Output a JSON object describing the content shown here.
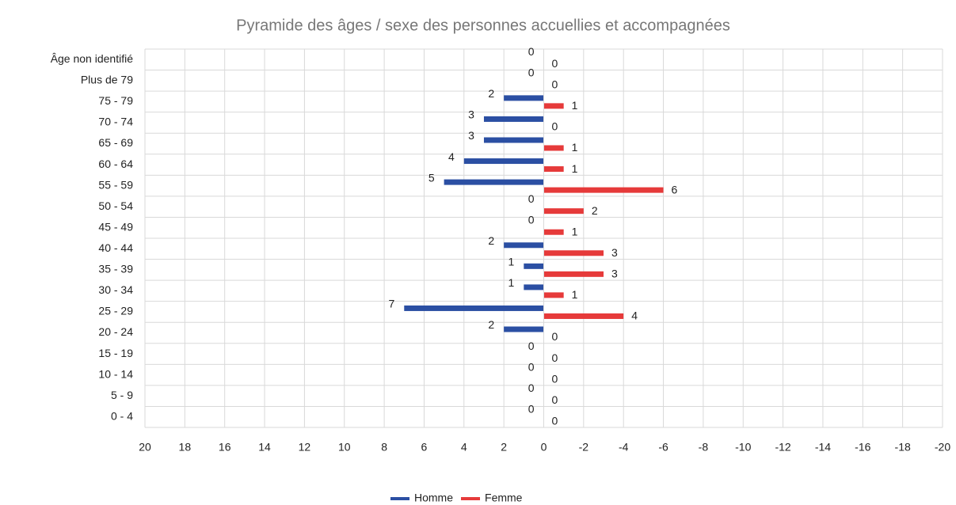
{
  "chart_data": {
    "type": "pyramid",
    "title": "Pyramide des âges / sexe des personnes accuellies et accompagnées",
    "categories": [
      "Âge non identifié",
      "Plus de 79",
      "75 - 79",
      "70 - 74",
      "65 - 69",
      "60 - 64",
      "55 - 59",
      "50 - 54",
      "45 - 49",
      "40 - 44",
      "35 - 39",
      "30 - 34",
      "25 - 29",
      "20 - 24",
      "15 - 19",
      "10 - 14",
      "5 - 9",
      "0 - 4"
    ],
    "series": [
      {
        "name": "Homme",
        "color": "#2b4fa3",
        "values": [
          0,
          0,
          2,
          3,
          3,
          4,
          5,
          0,
          0,
          2,
          1,
          1,
          7,
          2,
          0,
          0,
          0,
          0
        ]
      },
      {
        "name": "Femme",
        "color": "#e63a3a",
        "values": [
          0,
          0,
          -1,
          0,
          -1,
          -1,
          -6,
          -2,
          -1,
          -3,
          -3,
          -1,
          -4,
          0,
          0,
          0,
          0,
          0
        ],
        "value_labels": [
          "0",
          "0",
          "1",
          "0",
          "1",
          "1",
          "6",
          "2",
          "1",
          "3",
          "3",
          "1",
          "4",
          "0",
          "0",
          "0",
          "0",
          "0"
        ]
      }
    ],
    "xlim": [
      20,
      -20
    ],
    "xticks": [
      20,
      18,
      16,
      14,
      12,
      10,
      8,
      6,
      4,
      2,
      0,
      -2,
      -4,
      -6,
      -8,
      -10,
      -12,
      -14,
      -16,
      -18,
      -20
    ],
    "grid": true,
    "legend": "bottom"
  }
}
